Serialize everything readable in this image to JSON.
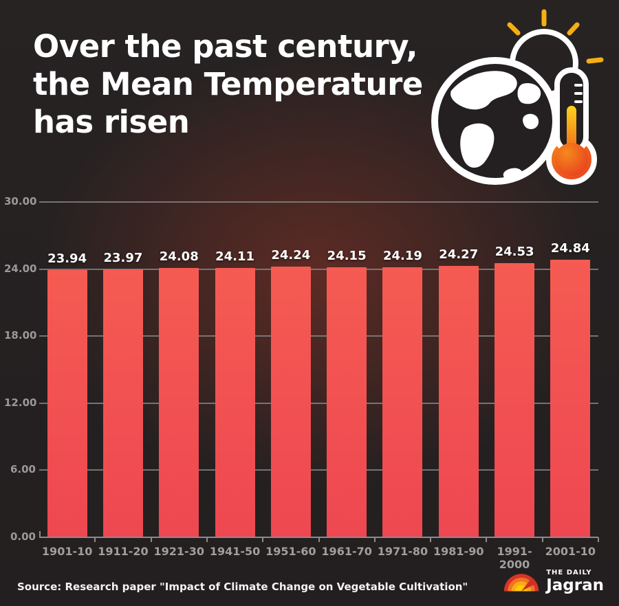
{
  "header": {
    "title_lines": [
      "Over the past century,",
      "the Mean Temperature",
      "has risen"
    ],
    "illustration": "globe-with-thermometer-and-sun"
  },
  "chart_data": {
    "type": "bar",
    "title": "Over the past century, the Mean Temperature has risen",
    "categories": [
      "1901-10",
      "1911-20",
      "1921-30",
      "1941-50",
      "1951-60",
      "1961-70",
      "1971-80",
      "1981-90",
      "1991-2000",
      "2001-10"
    ],
    "values": [
      23.94,
      23.97,
      24.08,
      24.11,
      24.24,
      24.15,
      24.19,
      24.27,
      24.53,
      24.84
    ],
    "value_labels": [
      "23.94",
      "23.97",
      "24.08",
      "24.11",
      "24.24",
      "24.15",
      "24.19",
      "24.27",
      "24.53",
      "24.84"
    ],
    "xlabel": "",
    "ylabel": "",
    "ylim": [
      0,
      30
    ],
    "y_ticks": [
      "30.00",
      "24.00",
      "18.00",
      "12.00",
      "6.00",
      "0.00"
    ],
    "grid": true,
    "legend": "none",
    "bar_color_top": "#F55B52",
    "bar_color_bottom": "#EE4751"
  },
  "footer": {
    "source": "Source: Research paper \"Impact of Climate Change on Vegetable Cultivation\"",
    "logo": {
      "top": "THE DAILY",
      "name": "Jagran"
    }
  },
  "colors": {
    "background": "#242021",
    "glow": "#963426",
    "bar": "#F25350",
    "grid": "#858181",
    "axis_text": "#a29e9e",
    "value_text": "#ffffff",
    "sun_ray_yellow": "#F5AF14",
    "thermo_orange": "#F2691C",
    "thermo_yellow": "#FFD21C",
    "thermo_red": "#E8401F",
    "logo_red": "#D6342A",
    "logo_orange": "#F17420",
    "logo_amber": "#FBA919",
    "logo_yellow": "#FFCB05"
  }
}
